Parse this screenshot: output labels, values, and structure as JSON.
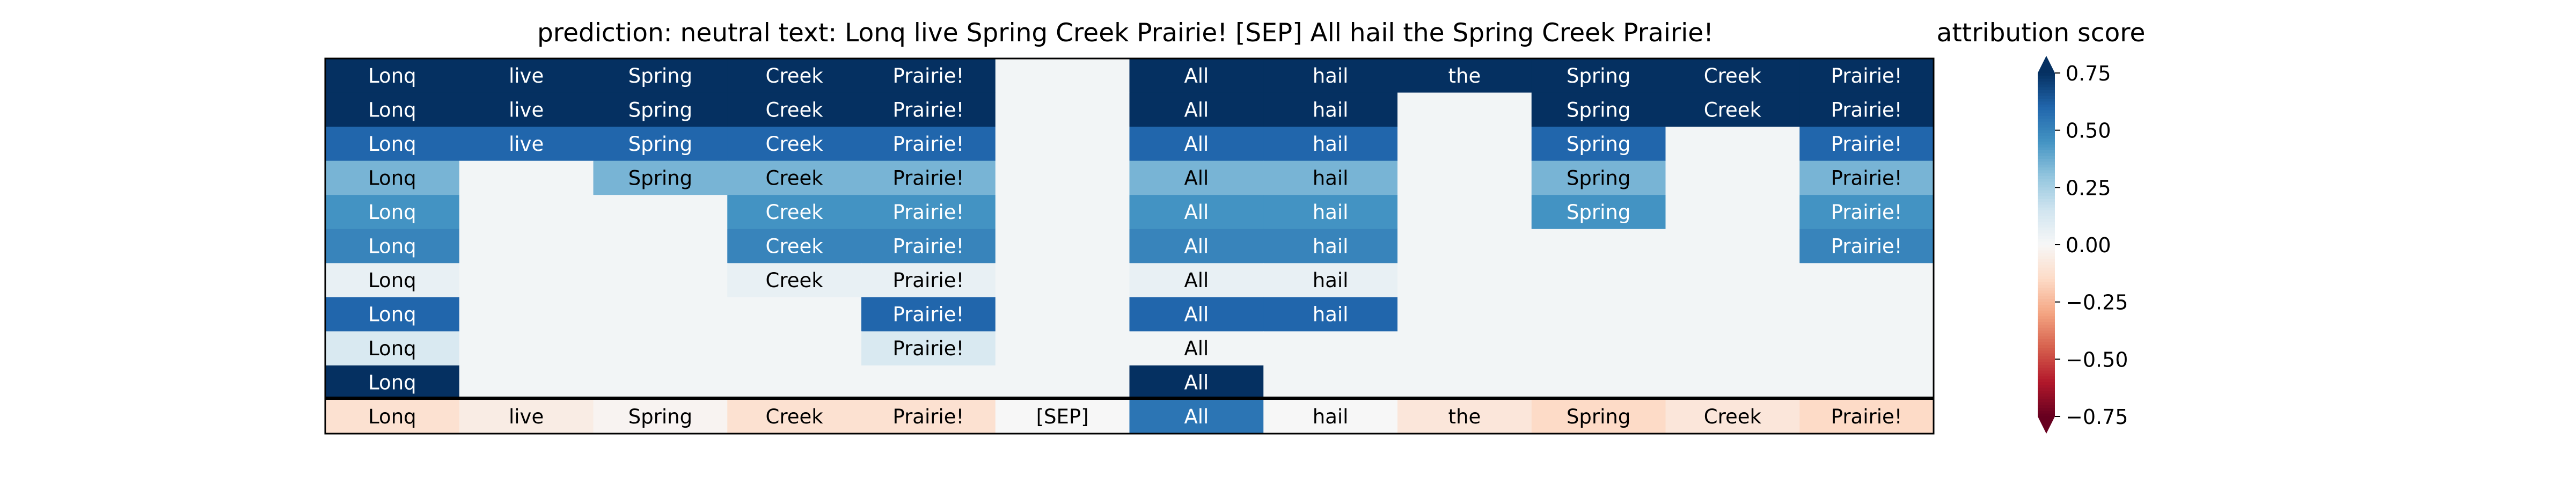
{
  "chart_data": {
    "type": "heatmap",
    "title": "prediction:  neutral     text:  Lonq live Spring Creek Prairie! [SEP] All hail the Spring Creek Prairie!",
    "columns": [
      "Lonq",
      "live",
      "Spring",
      "Creek",
      "Prairie!",
      "[SEP]",
      "All",
      "hail",
      "the",
      "Spring",
      "Creek",
      "Prairie!"
    ],
    "rows": [
      {
        "cells": [
          0.9,
          0.9,
          0.9,
          0.9,
          0.9,
          0.02,
          0.9,
          0.9,
          0.9,
          0.9,
          0.9,
          0.9
        ]
      },
      {
        "cells": [
          0.9,
          0.9,
          0.9,
          0.9,
          0.9,
          0.02,
          0.9,
          0.9,
          0.02,
          0.9,
          0.9,
          0.9
        ]
      },
      {
        "cells": [
          0.6,
          0.6,
          0.6,
          0.6,
          0.6,
          0.02,
          0.6,
          0.6,
          0.02,
          0.6,
          0.02,
          0.6
        ]
      },
      {
        "cells": [
          0.35,
          0.02,
          0.35,
          0.35,
          0.35,
          0.02,
          0.35,
          0.35,
          0.02,
          0.35,
          0.02,
          0.35
        ]
      },
      {
        "cells": [
          0.45,
          0.02,
          0.02,
          0.45,
          0.45,
          0.02,
          0.45,
          0.45,
          0.02,
          0.45,
          0.02,
          0.45
        ]
      },
      {
        "cells": [
          0.5,
          0.02,
          0.02,
          0.5,
          0.5,
          0.02,
          0.5,
          0.5,
          0.02,
          0.02,
          0.02,
          0.5
        ]
      },
      {
        "cells": [
          0.06,
          0.02,
          0.02,
          0.06,
          0.06,
          0.02,
          0.06,
          0.06,
          0.02,
          0.02,
          0.02,
          0.02
        ]
      },
      {
        "cells": [
          0.6,
          0.02,
          0.02,
          0.02,
          0.6,
          0.02,
          0.6,
          0.6,
          0.02,
          0.02,
          0.02,
          0.02
        ]
      },
      {
        "cells": [
          0.12,
          0.02,
          0.02,
          0.02,
          0.12,
          0.02,
          0.02,
          0.02,
          0.02,
          0.02,
          0.02,
          0.02
        ]
      },
      {
        "cells": [
          0.9,
          0.02,
          0.02,
          0.02,
          0.02,
          0.02,
          0.9,
          0.02,
          0.02,
          0.02,
          0.02,
          0.02
        ]
      },
      {
        "cells": [
          -0.12,
          -0.06,
          -0.02,
          -0.12,
          -0.12,
          0.0,
          0.55,
          0.0,
          -0.09,
          -0.15,
          -0.09,
          -0.15
        ]
      }
    ],
    "row_labels": [
      [
        "Lonq",
        "live",
        "Spring",
        "Creek",
        "Prairie!",
        "",
        "All",
        "hail",
        "the",
        "Spring",
        "Creek",
        "Prairie!"
      ],
      [
        "Lonq",
        "live",
        "Spring",
        "Creek",
        "Prairie!",
        "",
        "All",
        "hail",
        "",
        "Spring",
        "Creek",
        "Prairie!"
      ],
      [
        "Lonq",
        "live",
        "Spring",
        "Creek",
        "Prairie!",
        "",
        "All",
        "hail",
        "",
        "Spring",
        "",
        "Prairie!"
      ],
      [
        "Lonq",
        "",
        "Spring",
        "Creek",
        "Prairie!",
        "",
        "All",
        "hail",
        "",
        "Spring",
        "",
        "Prairie!"
      ],
      [
        "Lonq",
        "",
        "",
        "Creek",
        "Prairie!",
        "",
        "All",
        "hail",
        "",
        "Spring",
        "",
        "Prairie!"
      ],
      [
        "Lonq",
        "",
        "",
        "Creek",
        "Prairie!",
        "",
        "All",
        "hail",
        "",
        "",
        "",
        "Prairie!"
      ],
      [
        "Lonq",
        "",
        "",
        "Creek",
        "Prairie!",
        "",
        "All",
        "hail",
        "",
        "",
        "",
        ""
      ],
      [
        "Lonq",
        "",
        "",
        "",
        "Prairie!",
        "",
        "All",
        "hail",
        "",
        "",
        "",
        ""
      ],
      [
        "Lonq",
        "",
        "",
        "",
        "Prairie!",
        "",
        "All",
        "",
        "",
        "",
        "",
        ""
      ],
      [
        "Lonq",
        "",
        "",
        "",
        "",
        "",
        "All",
        "",
        "",
        "",
        "",
        ""
      ],
      [
        "Lonq",
        "live",
        "Spring",
        "Creek",
        "Prairie!",
        "[SEP]",
        "All",
        "hail",
        "the",
        "Spring",
        "Creek",
        "Prairie!"
      ]
    ],
    "vmin": -0.75,
    "vmax": 0.75,
    "colormap": "RdBu",
    "grid": false,
    "colorbar": {
      "label": "attribution score",
      "ticks": [
        0.75,
        0.5,
        0.25,
        0.0,
        -0.25,
        -0.5,
        -0.75
      ],
      "tick_labels": [
        "0.75",
        "0.50",
        "0.25",
        "0.00",
        "−0.25",
        "−0.50",
        "−0.75"
      ],
      "extend": "both"
    }
  }
}
